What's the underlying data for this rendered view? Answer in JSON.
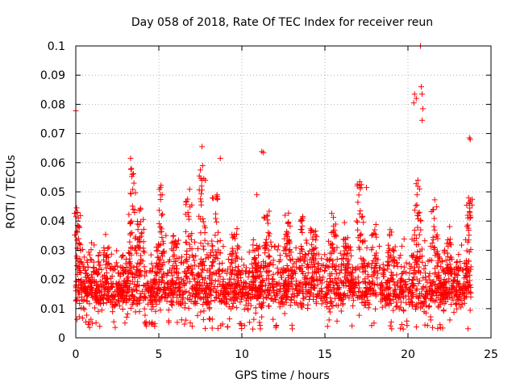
{
  "chart_data": {
    "type": "scatter",
    "title": "Day 058 of 2018, Rate Of TEC Index for receiver reun",
    "xlabel": "GPS time / hours",
    "ylabel": "ROTI / TECUs",
    "xlim": [
      0,
      25
    ],
    "ylim": [
      0,
      0.1
    ],
    "xticks": [
      0,
      5,
      10,
      15,
      20,
      25
    ],
    "xtick_labels": [
      "0",
      "5",
      "10",
      "15",
      "20",
      "25"
    ],
    "yticks": [
      0,
      0.01,
      0.02,
      0.03,
      0.04,
      0.05,
      0.06,
      0.07,
      0.08,
      0.09,
      0.1
    ],
    "ytick_labels": [
      "0",
      "0.01",
      "0.02",
      "0.03",
      "0.04",
      "0.05",
      "0.06",
      "0.07",
      "0.08",
      "0.09",
      "0.1"
    ],
    "grid": true,
    "marker": "plus",
    "series_color": "#ff0000",
    "outliers": [
      {
        "x": 0.0,
        "y": 0.0778
      },
      {
        "x": 0.05,
        "y": 0.0445
      },
      {
        "x": 0.1,
        "y": 0.043
      },
      {
        "x": 0.15,
        "y": 0.041
      },
      {
        "x": 3.3,
        "y": 0.0615
      },
      {
        "x": 3.35,
        "y": 0.058
      },
      {
        "x": 3.4,
        "y": 0.056
      },
      {
        "x": 3.5,
        "y": 0.053
      },
      {
        "x": 5.1,
        "y": 0.0515
      },
      {
        "x": 5.2,
        "y": 0.049
      },
      {
        "x": 7.6,
        "y": 0.0655
      },
      {
        "x": 7.5,
        "y": 0.0575
      },
      {
        "x": 7.8,
        "y": 0.054
      },
      {
        "x": 8.7,
        "y": 0.0615
      },
      {
        "x": 8.5,
        "y": 0.049
      },
      {
        "x": 11.2,
        "y": 0.0638
      },
      {
        "x": 11.3,
        "y": 0.0635
      },
      {
        "x": 10.9,
        "y": 0.049
      },
      {
        "x": 17.1,
        "y": 0.0535
      },
      {
        "x": 17.2,
        "y": 0.0525
      },
      {
        "x": 17.5,
        "y": 0.0515
      },
      {
        "x": 20.4,
        "y": 0.0835
      },
      {
        "x": 20.5,
        "y": 0.082
      },
      {
        "x": 20.35,
        "y": 0.0805
      },
      {
        "x": 20.75,
        "y": 0.1
      },
      {
        "x": 20.8,
        "y": 0.086
      },
      {
        "x": 20.85,
        "y": 0.0835
      },
      {
        "x": 20.9,
        "y": 0.0785
      },
      {
        "x": 20.85,
        "y": 0.0745
      },
      {
        "x": 20.6,
        "y": 0.054
      },
      {
        "x": 20.7,
        "y": 0.051
      },
      {
        "x": 23.7,
        "y": 0.0685
      },
      {
        "x": 23.75,
        "y": 0.068
      },
      {
        "x": 23.65,
        "y": 0.048
      },
      {
        "x": 23.7,
        "y": 0.046
      },
      {
        "x": 23.6,
        "y": 0.042
      }
    ],
    "dense_band": {
      "x_range": [
        0,
        23.8
      ],
      "typical_y_range": [
        0.007,
        0.022
      ],
      "minimum_y": 0.003,
      "spike_x": [
        0.1,
        1.8,
        3.4,
        3.9,
        5.1,
        6.0,
        6.8,
        7.6,
        8.4,
        9.6,
        10.8,
        11.5,
        12.8,
        13.7,
        14.3,
        15.5,
        16.3,
        17.1,
        18.0,
        19.0,
        20.6,
        21.6,
        22.5,
        23.7
      ],
      "spike_peak_y": [
        0.045,
        0.033,
        0.06,
        0.045,
        0.052,
        0.034,
        0.052,
        0.057,
        0.049,
        0.036,
        0.032,
        0.044,
        0.043,
        0.042,
        0.037,
        0.039,
        0.034,
        0.053,
        0.036,
        0.039,
        0.054,
        0.045,
        0.034,
        0.048
      ]
    }
  }
}
